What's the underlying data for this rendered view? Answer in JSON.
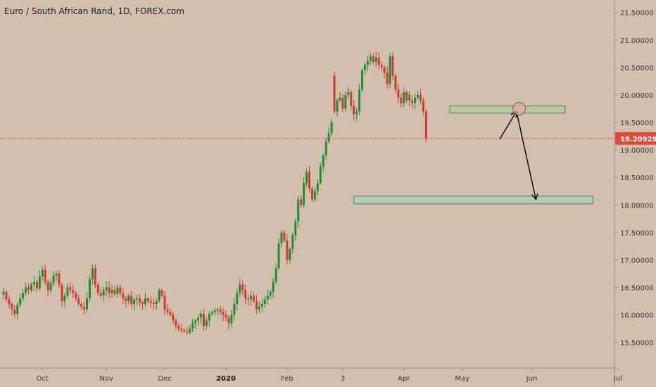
{
  "chart_data": {
    "type": "candlestick",
    "title": "Euro / South African Rand, 1D, FOREX.com",
    "xlabel": "",
    "ylabel": "",
    "ylim": [
      15.15,
      21.65
    ],
    "y_ticks": [
      "15.50000",
      "16.00000",
      "16.50000",
      "17.00000",
      "17.50000",
      "18.00000",
      "18.50000",
      "19.00000",
      "19.50000",
      "20.00000",
      "20.50000",
      "21.00000",
      "21.50000"
    ],
    "x_ticks": [
      {
        "label": "Oct",
        "bar": 14,
        "bold": false
      },
      {
        "label": "Nov",
        "bar": 37,
        "bold": false
      },
      {
        "label": "Dec",
        "bar": 58,
        "bold": false
      },
      {
        "label": "2020",
        "bar": 80,
        "bold": true
      },
      {
        "label": "Feb",
        "bar": 102,
        "bold": false
      },
      {
        "label": "3",
        "bar": 122,
        "bold": false
      },
      {
        "label": "Apr",
        "bar": 144,
        "bold": false
      },
      {
        "label": "May",
        "bar": 165,
        "bold": false
      },
      {
        "label": "Jun",
        "bar": 190,
        "bold": false
      },
      {
        "label": "Jul",
        "bar": 221,
        "bold": false
      }
    ],
    "last_price": 19.20929,
    "last_price_label": "19.20929",
    "zones": [
      {
        "name": "resistance-zone",
        "bar_start": 160.5,
        "bar_end": 202,
        "y_low": 19.67,
        "y_high": 19.8
      },
      {
        "name": "support-zone",
        "bar_start": 126,
        "bar_end": 212,
        "y_low": 18.02,
        "y_high": 18.16
      }
    ],
    "projection_path": [
      {
        "bar": 178.5,
        "y": 19.2
      },
      {
        "bar": 184.5,
        "y": 19.7
      },
      {
        "bar": 191.5,
        "y": 18.1
      }
    ],
    "circle_marker": {
      "bar": 185.5,
      "y": 19.75
    },
    "colors": {
      "up": "#1e8e2f",
      "down": "#d33a2c",
      "price_line": "#e04a3c",
      "zone_fill": "#b5c9a0",
      "zone_stroke": "#4f7c44",
      "support_fill": "#a9cdb6",
      "support_stroke": "#3a8a68",
      "arrow": "#111111",
      "circle_fill": "#e0a8a4",
      "circle_stroke": "#7a5a58",
      "label_bg": "#e04a3c"
    },
    "closes": [
      16.42,
      16.28,
      16.2,
      16.1,
      16.02,
      16.18,
      16.3,
      16.4,
      16.5,
      16.45,
      16.55,
      16.6,
      16.48,
      16.7,
      16.82,
      16.6,
      16.45,
      16.58,
      16.72,
      16.75,
      16.55,
      16.25,
      16.35,
      16.5,
      16.45,
      16.4,
      16.3,
      16.2,
      16.15,
      16.1,
      16.3,
      16.65,
      16.85,
      16.55,
      16.4,
      16.35,
      16.45,
      16.5,
      16.4,
      16.45,
      16.38,
      16.5,
      16.4,
      16.3,
      16.25,
      16.35,
      16.2,
      16.28,
      16.3,
      16.22,
      16.2,
      16.3,
      16.25,
      16.22,
      16.2,
      16.25,
      16.45,
      16.35,
      16.1,
      16.05,
      16.0,
      15.9,
      15.8,
      15.75,
      15.72,
      15.7,
      15.68,
      15.75,
      15.85,
      15.9,
      15.95,
      16.02,
      15.8,
      15.9,
      16.02,
      16.05,
      16.08,
      16.1,
      16.05,
      16.0,
      15.95,
      15.85,
      16.0,
      16.2,
      16.4,
      16.55,
      16.45,
      16.3,
      16.28,
      16.35,
      16.25,
      16.1,
      16.15,
      16.2,
      16.28,
      16.35,
      16.42,
      16.6,
      16.85,
      17.3,
      17.5,
      17.35,
      17.0,
      17.2,
      17.45,
      17.7,
      18.1,
      18.0,
      18.4,
      18.6,
      18.3,
      18.1,
      18.25,
      18.4,
      18.7,
      18.9,
      19.15,
      19.3,
      19.5,
      19.7,
      19.9,
      19.95,
      19.75,
      20.0,
      20.05,
      19.8,
      19.65,
      19.7,
      20.1,
      20.45,
      20.55,
      20.62,
      20.7,
      20.6,
      20.68,
      20.55,
      20.5,
      20.4,
      20.2,
      20.7,
      20.35,
      20.1,
      19.95,
      19.85,
      20.05,
      19.9,
      20.0,
      19.85,
      19.95,
      20.0,
      19.9,
      19.7,
      19.2
    ],
    "opens_override": {
      "119": 20.35,
      "147": 19.9,
      "157": 19.82,
      "158": 19.7
    }
  }
}
